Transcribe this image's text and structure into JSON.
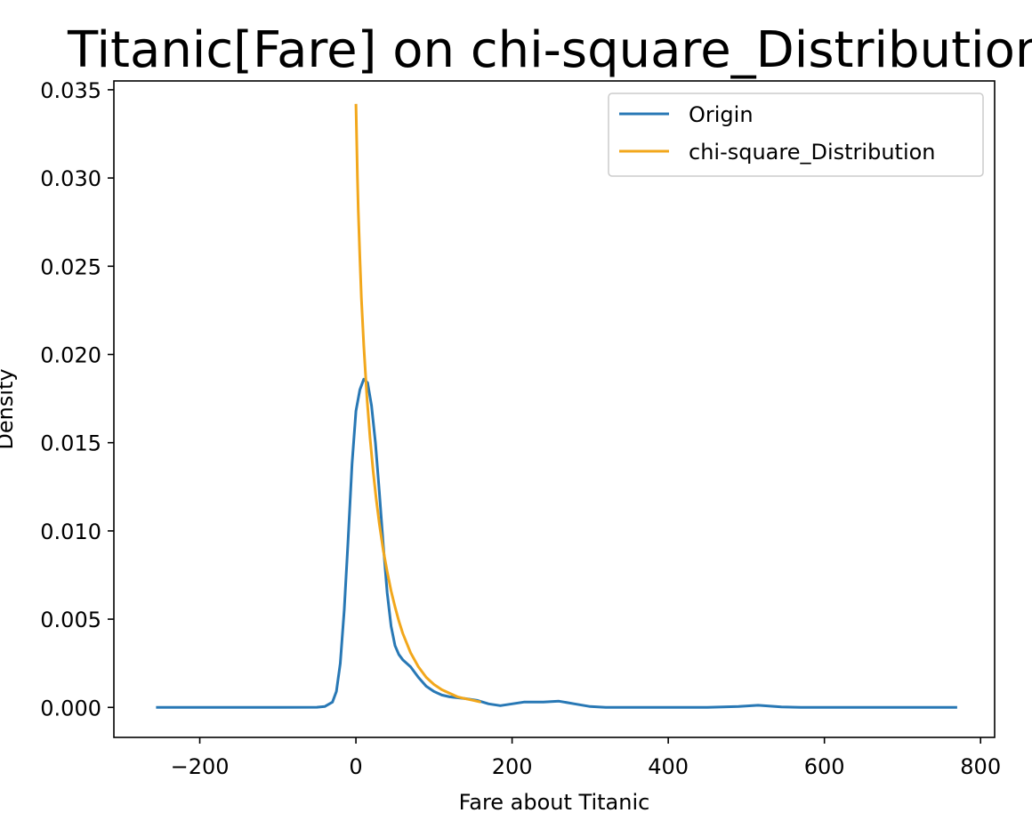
{
  "chart_data": {
    "type": "line",
    "title": "Titanic[Fare] on chi-square_Distribution",
    "xlabel": "Fare about Titanic",
    "ylabel": "Density",
    "xlim": [
      -310,
      818
    ],
    "ylim": [
      -0.0017,
      0.0355
    ],
    "x_ticks": [
      -200,
      0,
      200,
      400,
      600,
      800
    ],
    "x_tick_labels": [
      "−200",
      "0",
      "200",
      "400",
      "600",
      "800"
    ],
    "y_ticks": [
      0.0,
      0.005,
      0.01,
      0.015,
      0.02,
      0.025,
      0.03,
      0.035
    ],
    "y_tick_labels": [
      "0.000",
      "0.005",
      "0.010",
      "0.015",
      "0.020",
      "0.025",
      "0.030",
      "0.035"
    ],
    "grid": false,
    "legend": "top-right",
    "series": [
      {
        "name": "Origin",
        "color": "#2878b5",
        "points": [
          [
            -256,
            0.0
          ],
          [
            -100,
            0.0
          ],
          [
            -50,
            1e-05
          ],
          [
            -40,
            5e-05
          ],
          [
            -30,
            0.0003
          ],
          [
            -25,
            0.0009
          ],
          [
            -20,
            0.0025
          ],
          [
            -15,
            0.0055
          ],
          [
            -10,
            0.0095
          ],
          [
            -5,
            0.0138
          ],
          [
            0,
            0.0168
          ],
          [
            5,
            0.018
          ],
          [
            10,
            0.0186
          ],
          [
            15,
            0.0184
          ],
          [
            20,
            0.0171
          ],
          [
            25,
            0.015
          ],
          [
            30,
            0.0122
          ],
          [
            35,
            0.0092
          ],
          [
            40,
            0.0065
          ],
          [
            45,
            0.0046
          ],
          [
            50,
            0.0035
          ],
          [
            55,
            0.003
          ],
          [
            60,
            0.0027
          ],
          [
            70,
            0.0023
          ],
          [
            80,
            0.0017
          ],
          [
            90,
            0.0012
          ],
          [
            100,
            0.0009
          ],
          [
            110,
            0.0007
          ],
          [
            120,
            0.0006
          ],
          [
            140,
            0.0005
          ],
          [
            155,
            0.0004
          ],
          [
            170,
            0.0002
          ],
          [
            185,
            0.0001
          ],
          [
            200,
            0.0002
          ],
          [
            215,
            0.0003
          ],
          [
            240,
            0.0003
          ],
          [
            260,
            0.00035
          ],
          [
            280,
            0.0002
          ],
          [
            300,
            5e-05
          ],
          [
            320,
            0.0
          ],
          [
            450,
            0.0
          ],
          [
            490,
            5e-05
          ],
          [
            515,
            0.00012
          ],
          [
            545,
            3e-05
          ],
          [
            570,
            0.0
          ],
          [
            770,
            0.0
          ]
        ]
      },
      {
        "name": "chi-square_Distribution",
        "color": "#f2a71b",
        "points": [
          [
            0,
            0.0342
          ],
          [
            1,
            0.032
          ],
          [
            2,
            0.03
          ],
          [
            3,
            0.0282
          ],
          [
            5,
            0.0255
          ],
          [
            7,
            0.0232
          ],
          [
            10,
            0.0205
          ],
          [
            14,
            0.0176
          ],
          [
            18,
            0.0153
          ],
          [
            22,
            0.0134
          ],
          [
            26,
            0.0118
          ],
          [
            30,
            0.0104
          ],
          [
            35,
            0.0089
          ],
          [
            40,
            0.0077
          ],
          [
            45,
            0.0066
          ],
          [
            50,
            0.0057
          ],
          [
            55,
            0.0049
          ],
          [
            60,
            0.0042
          ],
          [
            70,
            0.0031
          ],
          [
            80,
            0.0023
          ],
          [
            90,
            0.0017
          ],
          [
            100,
            0.0013
          ],
          [
            110,
            0.001
          ],
          [
            120,
            0.0008
          ],
          [
            130,
            0.0006
          ],
          [
            140,
            0.0005
          ],
          [
            150,
            0.0004
          ],
          [
            160,
            0.0003
          ]
        ]
      }
    ]
  }
}
